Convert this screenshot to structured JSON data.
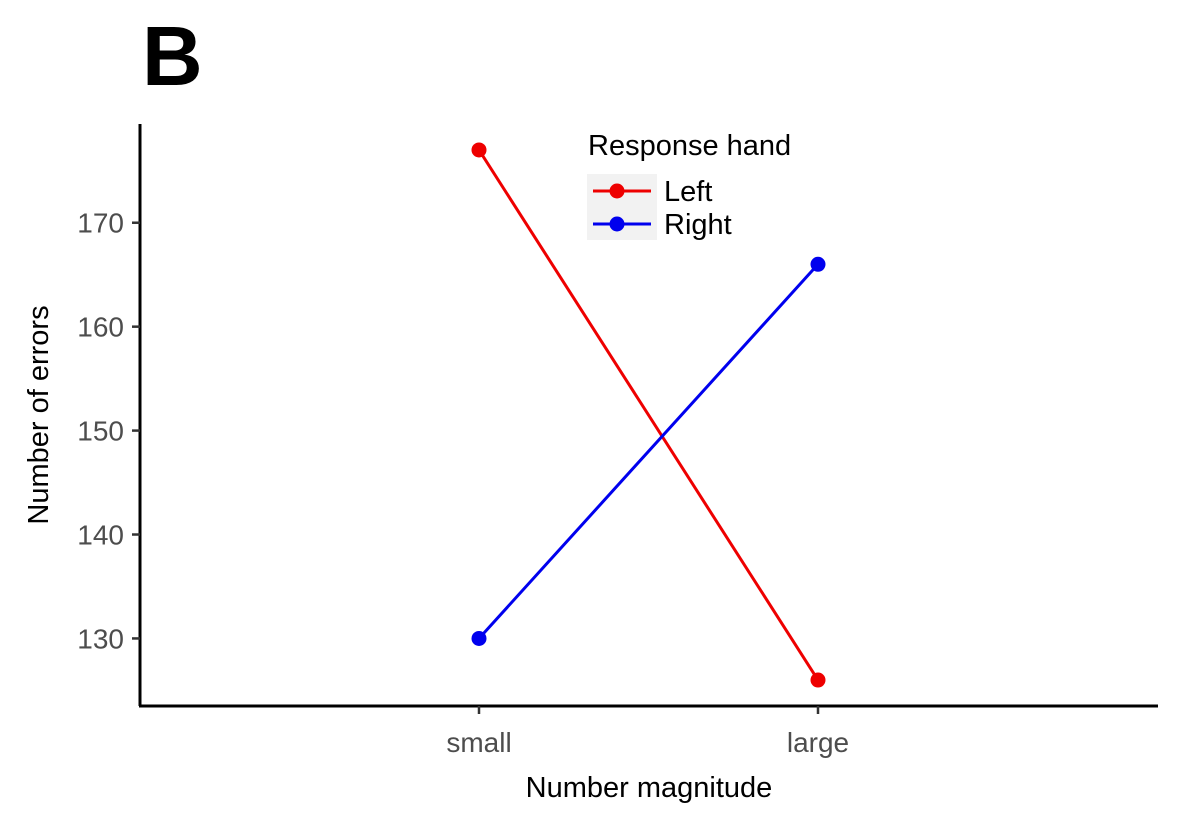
{
  "panel_label": "B",
  "chart_data": {
    "type": "line",
    "title": "",
    "xlabel": "Number magnitude",
    "ylabel": "Number of errors",
    "categories": [
      "small",
      "large"
    ],
    "ylim": [
      123.5,
      179.5
    ],
    "yticks": [
      130,
      140,
      150,
      160,
      170
    ],
    "grid": false,
    "legend": {
      "title": "Response hand",
      "position": "top-center"
    },
    "series": [
      {
        "name": "Left",
        "values": [
          177,
          126
        ],
        "color": "#ee0000"
      },
      {
        "name": "Right",
        "values": [
          130,
          166
        ],
        "color": "#0000ee"
      }
    ]
  }
}
